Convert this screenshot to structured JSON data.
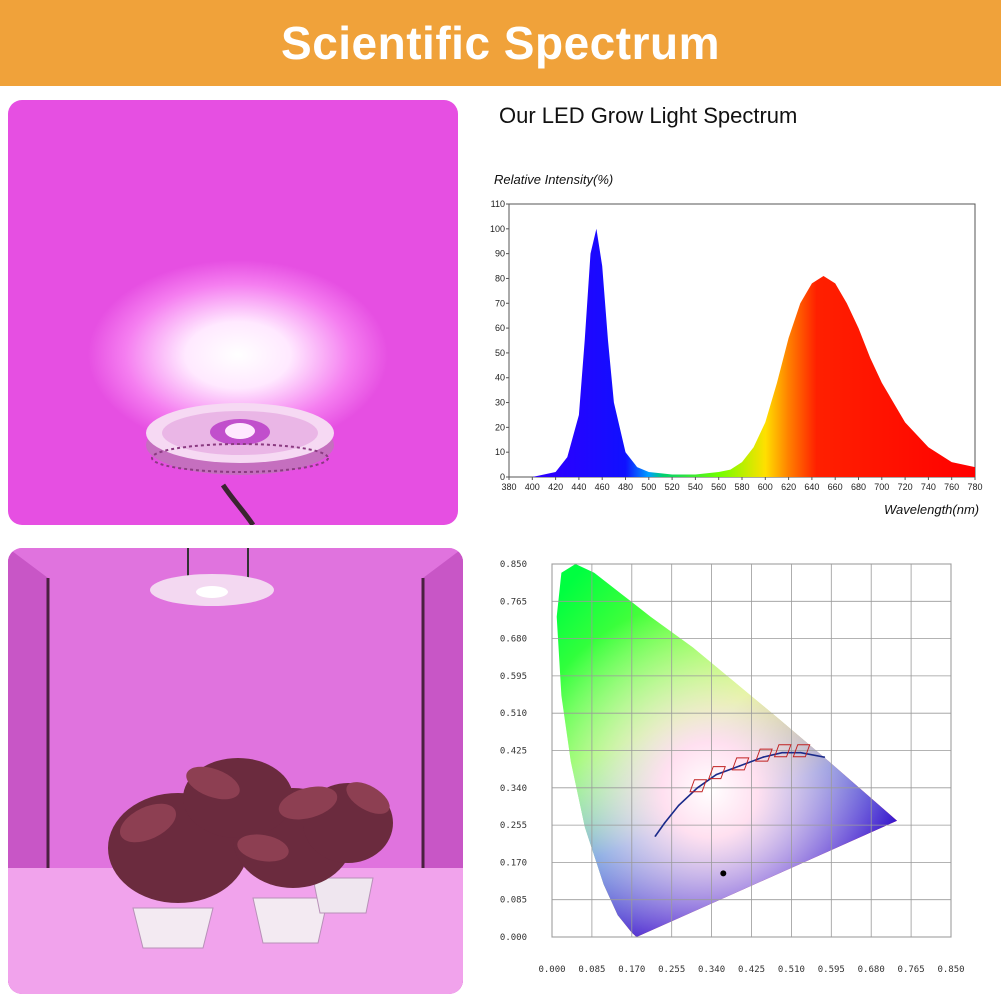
{
  "banner": {
    "title": "Scientific Spectrum",
    "color": "#f0a23a"
  },
  "spectrum_heading": "Our LED Grow Light Spectrum",
  "chart_data": [
    {
      "type": "area",
      "ylabel": "Relative Intensity(%)",
      "xlabel": "Wavelength(nm)",
      "xlim": [
        380,
        780
      ],
      "ylim": [
        0,
        110
      ],
      "x_ticks": [
        "380",
        "400",
        "420",
        "440",
        "460",
        "480",
        "500",
        "520",
        "540",
        "560",
        "580",
        "600",
        "620",
        "640",
        "660",
        "680",
        "700",
        "720",
        "740",
        "760",
        "780"
      ],
      "y_ticks": [
        "0",
        "10",
        "20",
        "30",
        "40",
        "50",
        "60",
        "70",
        "80",
        "90",
        "100",
        "110"
      ],
      "grid": false,
      "x": [
        380,
        400,
        420,
        430,
        440,
        445,
        450,
        455,
        460,
        465,
        470,
        480,
        490,
        500,
        520,
        540,
        560,
        570,
        580,
        590,
        600,
        610,
        620,
        630,
        640,
        650,
        660,
        670,
        680,
        690,
        700,
        720,
        740,
        760,
        780
      ],
      "values": [
        0,
        0,
        2,
        8,
        25,
        55,
        90,
        100,
        85,
        55,
        30,
        10,
        4,
        2,
        1,
        1,
        2,
        3,
        6,
        12,
        22,
        38,
        56,
        70,
        78,
        81,
        78,
        70,
        60,
        48,
        38,
        22,
        12,
        6,
        4
      ]
    },
    {
      "type": "scatter",
      "xlim": [
        0,
        0.85
      ],
      "ylim": [
        0,
        0.85
      ],
      "x_ticks": [
        "0.000",
        "0.085",
        "0.170",
        "0.255",
        "0.340",
        "0.425",
        "0.510",
        "0.595",
        "0.680",
        "0.765",
        "0.850"
      ],
      "y_ticks": [
        "0.850",
        "0.765",
        "0.680",
        "0.595",
        "0.510",
        "0.425",
        "0.340",
        "0.255",
        "0.170",
        "0.085",
        "0.000"
      ],
      "grid": true,
      "series": [
        {
          "x": [
            0.735,
            0.59,
            0.48,
            0.39,
            0.3,
            0.21,
            0.15,
            0.09,
            0.05,
            0.02,
            0.01,
            0.02,
            0.04,
            0.07,
            0.11,
            0.14,
            0.17,
            0.18
          ],
          "values": [
            0.265,
            0.4,
            0.5,
            0.58,
            0.66,
            0.73,
            0.78,
            0.83,
            0.85,
            0.83,
            0.73,
            0.55,
            0.4,
            0.25,
            0.12,
            0.05,
            0.01,
            0.0
          ]
        },
        {
          "x": [
            0.22,
            0.24,
            0.27,
            0.31,
            0.35,
            0.4,
            0.45,
            0.49,
            0.53,
            0.58
          ],
          "values": [
            0.23,
            0.26,
            0.3,
            0.34,
            0.37,
            0.39,
            0.41,
            0.42,
            0.42,
            0.41
          ]
        },
        {
          "x": [
            0.365
          ],
          "values": [
            0.145
          ]
        }
      ]
    }
  ]
}
